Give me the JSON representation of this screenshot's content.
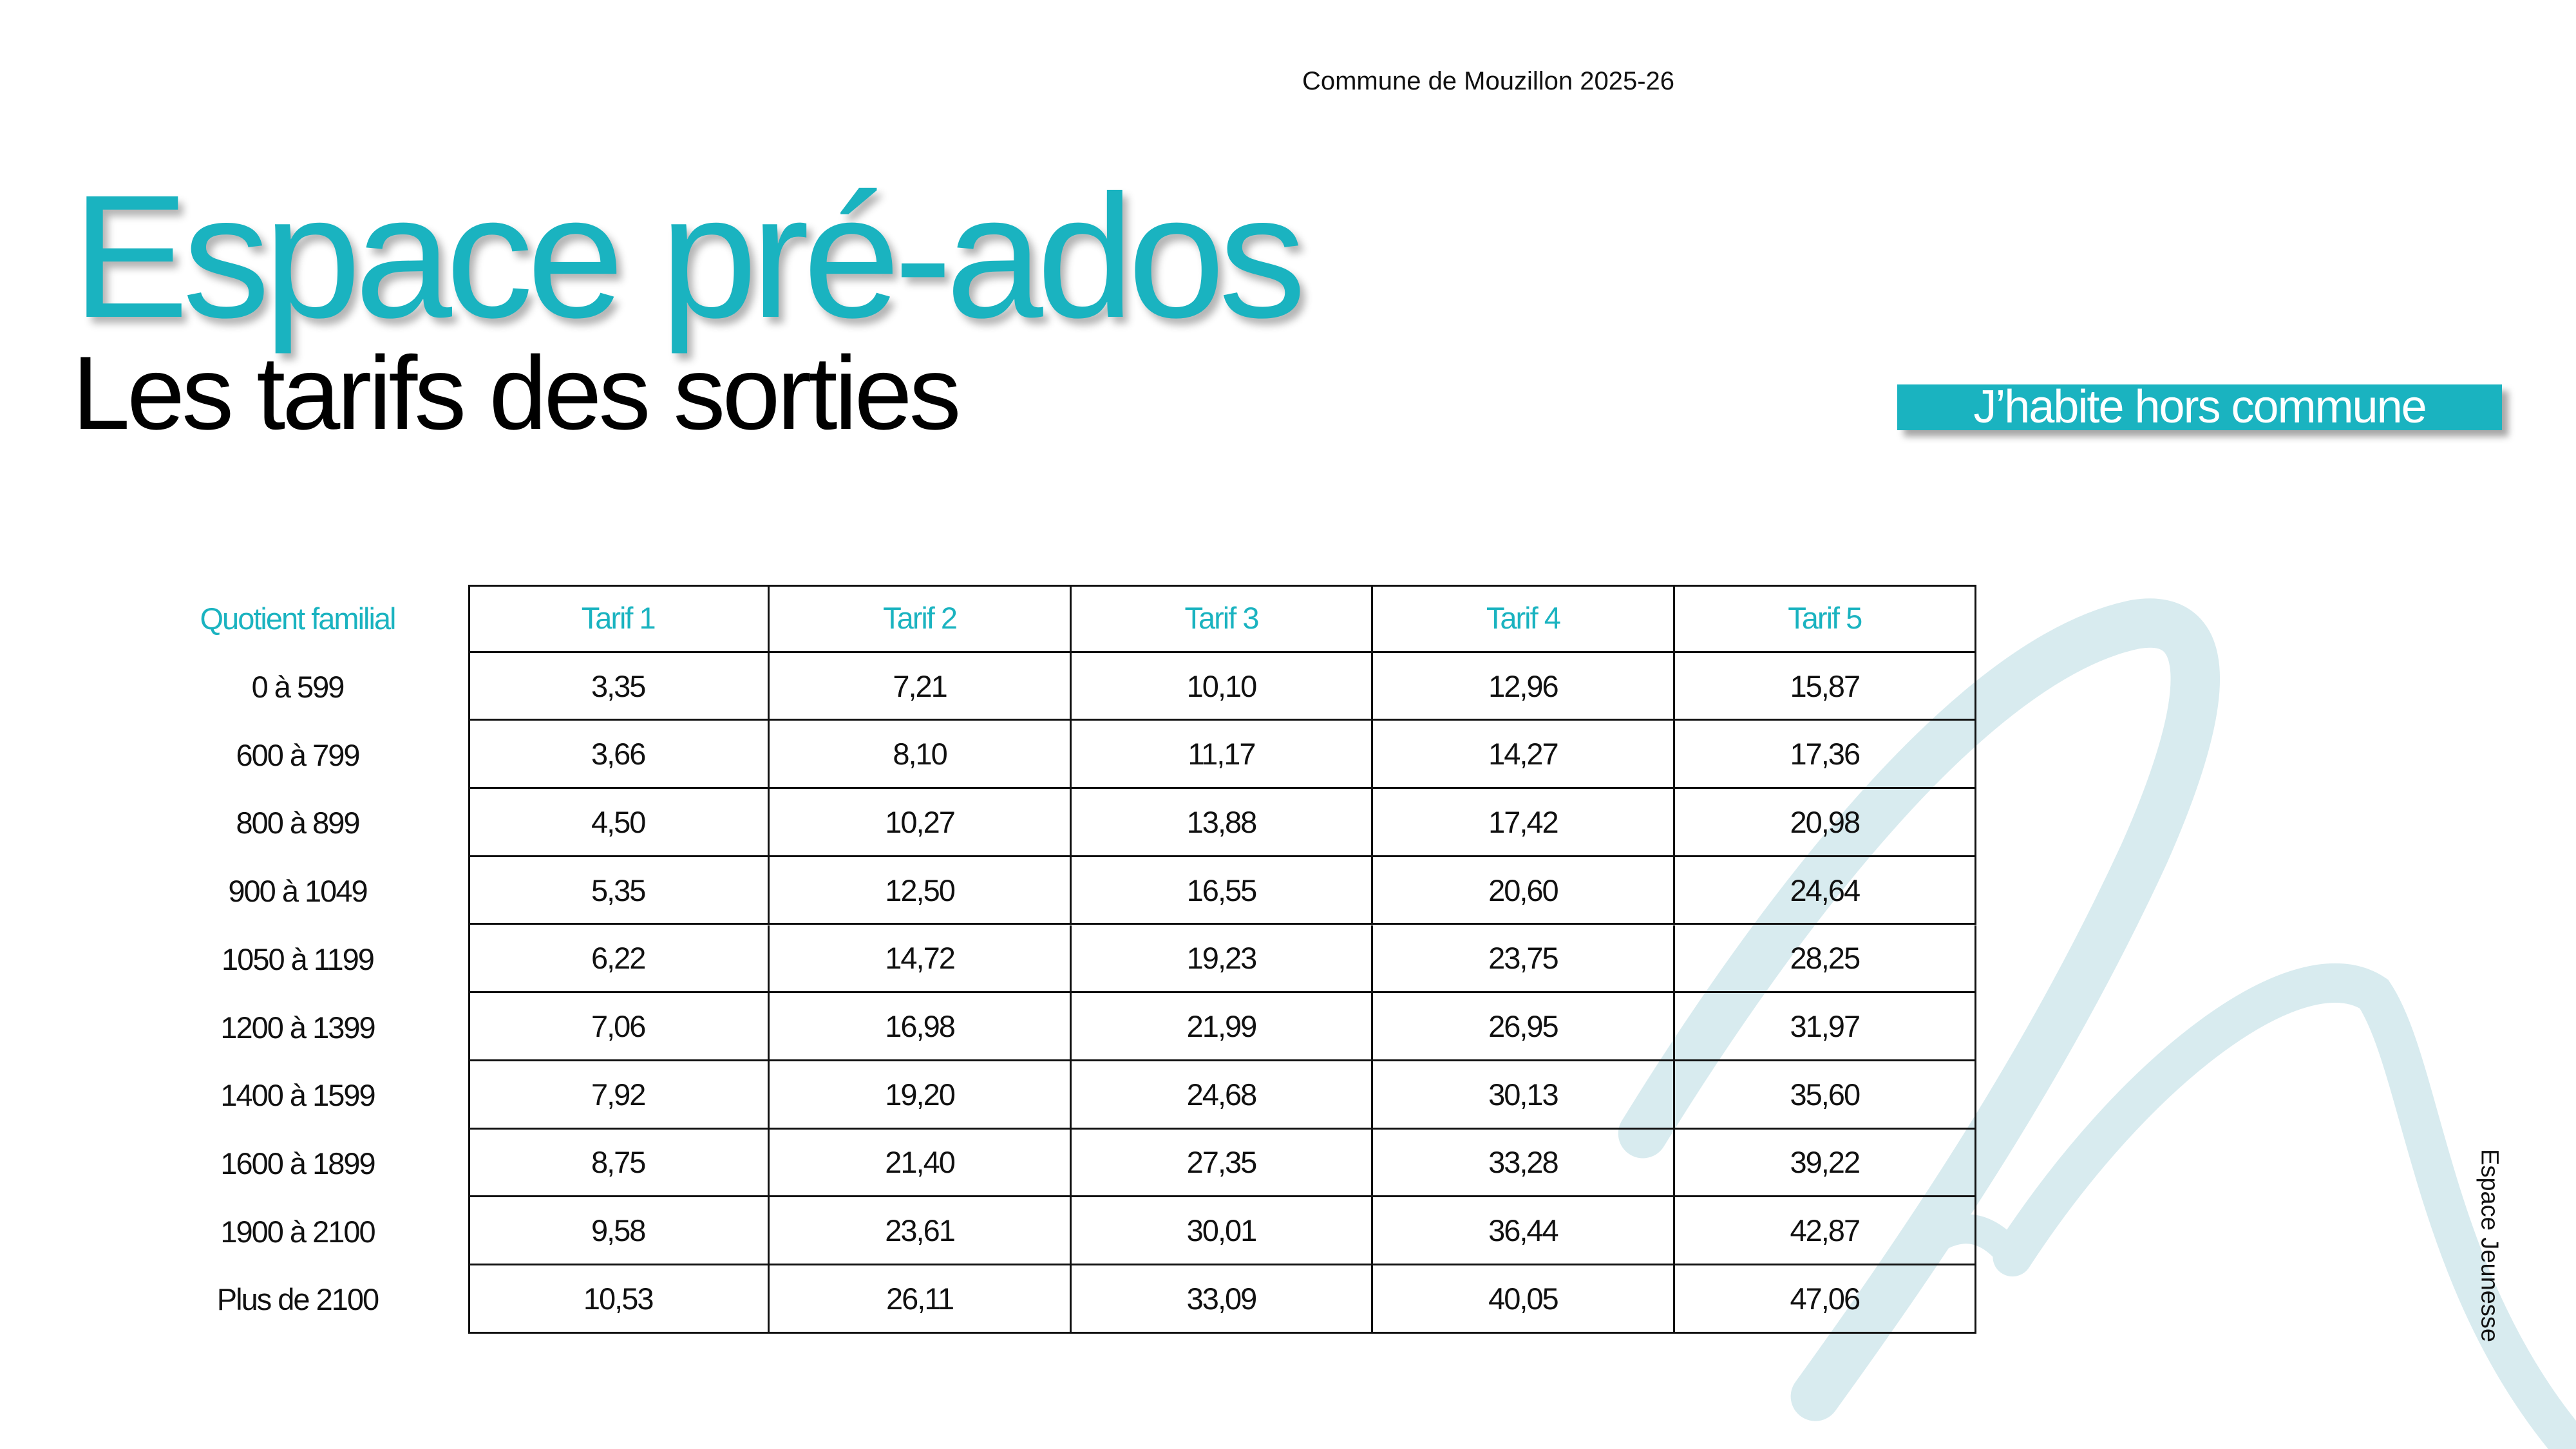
{
  "header": "Commune de Mouzillon 2025-26",
  "title": "Espace pré-ados",
  "subtitle": "Les tarifs des sorties",
  "badge": "J’habite hors commune",
  "side_label": "Espace Jeunesse",
  "table": {
    "corner": "Quotient familial",
    "columns": [
      "Tarif 1",
      "Tarif 2",
      "Tarif 3",
      "Tarif 4",
      "Tarif 5"
    ],
    "rows": [
      [
        "0 à 599",
        "3,35",
        "7,21",
        "10,10",
        "12,96",
        "15,87"
      ],
      [
        "600 à 799",
        "3,66",
        "8,10",
        "11,17",
        "14,27",
        "17,36"
      ],
      [
        "800 à 899",
        "4,50",
        "10,27",
        "13,88",
        "17,42",
        "20,98"
      ],
      [
        "900 à 1049",
        "5,35",
        "12,50",
        "16,55",
        "20,60",
        "24,64"
      ],
      [
        "1050 à 1199",
        "6,22",
        "14,72",
        "19,23",
        "23,75",
        "28,25"
      ],
      [
        "1200 à 1399",
        "7,06",
        "16,98",
        "21,99",
        "26,95",
        "31,97"
      ],
      [
        "1400 à 1599",
        "7,92",
        "19,20",
        "24,68",
        "30,13",
        "35,60"
      ],
      [
        "1600 à 1899",
        "8,75",
        "21,40",
        "27,35",
        "33,28",
        "39,22"
      ],
      [
        "1900 à 2100",
        "9,58",
        "23,61",
        "30,01",
        "36,44",
        "42,87"
      ],
      [
        "Plus de 2100",
        "10,53",
        "26,11",
        "33,09",
        "40,05",
        "47,06"
      ]
    ]
  }
}
